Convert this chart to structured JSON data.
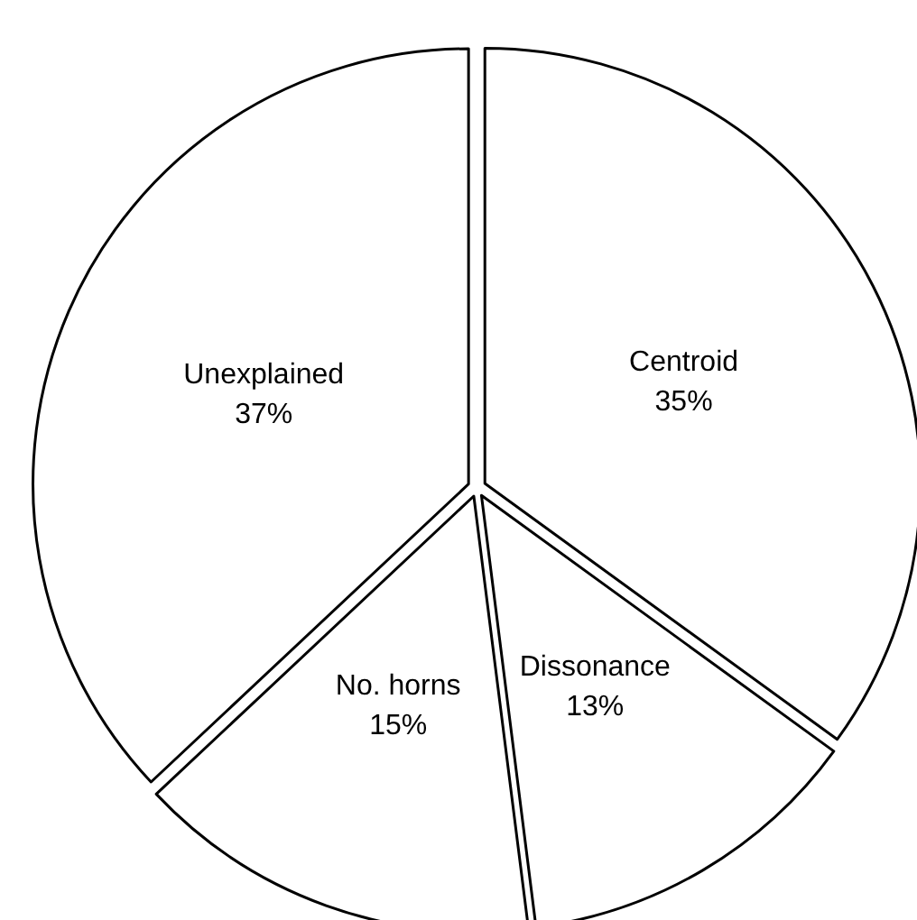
{
  "chart_data": {
    "type": "pie",
    "categories": [
      "Centroid",
      "Dissonance",
      "No. horns",
      "Unexplained"
    ],
    "values": [
      35,
      13,
      15,
      37
    ],
    "value_labels": [
      "35%",
      "13%",
      "15%",
      "37%"
    ],
    "colors": [
      "#ffffff",
      "#ffffff",
      "#ffffff",
      "#ffffff"
    ],
    "legend": false
  }
}
